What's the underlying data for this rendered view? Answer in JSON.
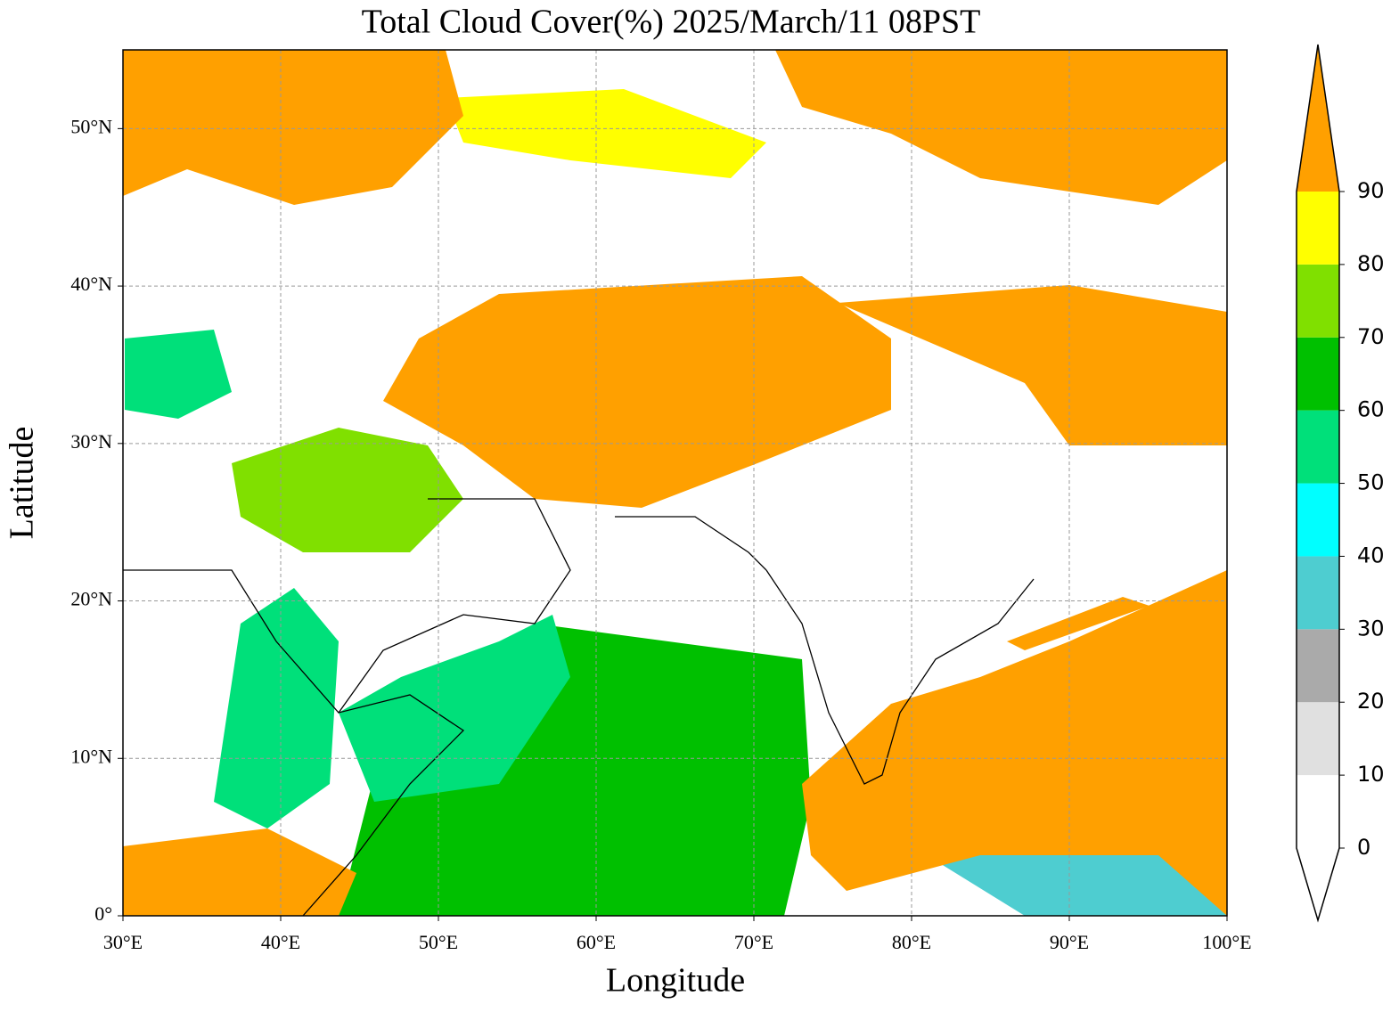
{
  "map": {
    "title": "Total Cloud Cover(%)  2025/March/11 08PST",
    "xlabel": "Longitude",
    "ylabel": "Latitude",
    "xlim": [
      30,
      100
    ],
    "ylim": [
      0,
      55
    ],
    "xticks": [
      {
        "value": 30,
        "label": "30°E"
      },
      {
        "value": 40,
        "label": "40°E"
      },
      {
        "value": 50,
        "label": "50°E"
      },
      {
        "value": 60,
        "label": "60°E"
      },
      {
        "value": 70,
        "label": "70°E"
      },
      {
        "value": 80,
        "label": "80°E"
      },
      {
        "value": 90,
        "label": "90°E"
      },
      {
        "value": 100,
        "label": "100°E"
      }
    ],
    "yticks": [
      {
        "value": 0,
        "label": "0°"
      },
      {
        "value": 10,
        "label": "10°N"
      },
      {
        "value": 20,
        "label": "20°N"
      },
      {
        "value": 30,
        "label": "30°N"
      },
      {
        "value": 40,
        "label": "40°N"
      },
      {
        "value": 50,
        "label": "50°N"
      }
    ],
    "grid": true,
    "colorbar": {
      "ticks": [
        0,
        10,
        20,
        30,
        40,
        50,
        60,
        70,
        80,
        90
      ],
      "colors": [
        "#ffffff",
        "#e0e0e0",
        "#aaaaaa",
        "#4ecdd0",
        "#00ffff",
        "#00e07a",
        "#00c000",
        "#80e000",
        "#ffff00"
      ],
      "under_color": "#ffffff",
      "over_color": "#ffa000"
    }
  }
}
